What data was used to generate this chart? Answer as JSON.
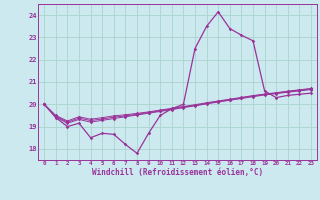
{
  "xlabel": "Windchill (Refroidissement éolien,°C)",
  "bg_color": "#cce9f0",
  "grid_color": "#aad4cc",
  "line_color": "#993399",
  "xlim": [
    -0.5,
    23.5
  ],
  "ylim": [
    17.5,
    24.5
  ],
  "yticks": [
    18,
    19,
    20,
    21,
    22,
    23,
    24
  ],
  "xticks": [
    0,
    1,
    2,
    3,
    4,
    5,
    6,
    7,
    8,
    9,
    10,
    11,
    12,
    13,
    14,
    15,
    16,
    17,
    18,
    19,
    20,
    21,
    22,
    23
  ],
  "series1": [
    20.0,
    19.4,
    19.0,
    19.15,
    18.5,
    18.7,
    18.65,
    18.2,
    17.8,
    18.7,
    19.5,
    19.8,
    20.0,
    22.5,
    23.5,
    24.15,
    23.4,
    23.1,
    22.85,
    20.6,
    20.3,
    20.4,
    20.45,
    20.5
  ],
  "series2": [
    20.0,
    19.42,
    19.15,
    19.32,
    19.2,
    19.28,
    19.36,
    19.44,
    19.52,
    19.6,
    19.68,
    19.76,
    19.85,
    19.93,
    20.02,
    20.1,
    20.18,
    20.26,
    20.34,
    20.42,
    20.48,
    20.54,
    20.6,
    20.66
  ],
  "series3": [
    20.0,
    19.46,
    19.2,
    19.38,
    19.27,
    19.34,
    19.42,
    19.48,
    19.55,
    19.63,
    19.71,
    19.79,
    19.87,
    19.95,
    20.04,
    20.12,
    20.2,
    20.28,
    20.37,
    20.44,
    20.5,
    20.57,
    20.63,
    20.69
  ],
  "series4": [
    20.0,
    19.5,
    19.25,
    19.44,
    19.33,
    19.4,
    19.48,
    19.53,
    19.59,
    19.66,
    19.74,
    19.82,
    19.9,
    19.98,
    20.07,
    20.15,
    20.23,
    20.31,
    20.39,
    20.46,
    20.52,
    20.59,
    20.65,
    20.71
  ]
}
